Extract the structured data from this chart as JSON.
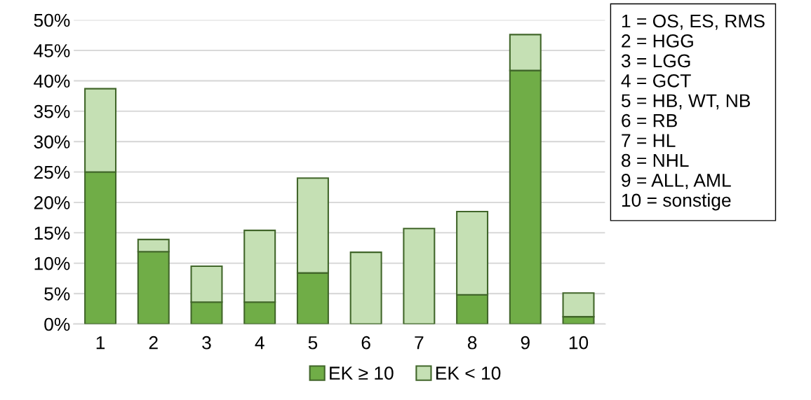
{
  "chart_data": {
    "type": "bar",
    "stacked": true,
    "categories": [
      "1",
      "2",
      "3",
      "4",
      "5",
      "6",
      "7",
      "8",
      "9",
      "10"
    ],
    "series": [
      {
        "name": "EK ≥ 10",
        "color": "#70ad47",
        "values": [
          25.0,
          11.9,
          3.6,
          3.6,
          8.4,
          0,
          0,
          4.8,
          41.7,
          1.2
        ]
      },
      {
        "name": "EK < 10",
        "color": "#c5e0b4",
        "values": [
          13.7,
          2.0,
          5.9,
          11.8,
          15.6,
          11.8,
          15.7,
          13.7,
          5.9,
          3.9
        ]
      }
    ],
    "ylim": [
      0,
      50
    ],
    "yticks": [
      {
        "value": 0,
        "label": "0%"
      },
      {
        "value": 5,
        "label": "5%"
      },
      {
        "value": 10,
        "label": "10%"
      },
      {
        "value": 15,
        "label": "15%"
      },
      {
        "value": 20,
        "label": "20%"
      },
      {
        "value": 25,
        "label": "25%"
      },
      {
        "value": 30,
        "label": "30%"
      },
      {
        "value": 35,
        "label": "35%"
      },
      {
        "value": 40,
        "label": "40%"
      },
      {
        "value": 45,
        "label": "45%"
      },
      {
        "value": 50,
        "label": "50%"
      }
    ],
    "grid": "y",
    "legend": "bottom",
    "annotations": [
      "1 = OS, ES, RMS",
      "2 = HGG",
      "3 = LGG",
      "4 = GCT",
      "5 = HB, WT, NB",
      "6 = RB",
      "7 = HL",
      "8 = NHL",
      "9 = ALL, AML",
      "10 = sonstige"
    ]
  }
}
